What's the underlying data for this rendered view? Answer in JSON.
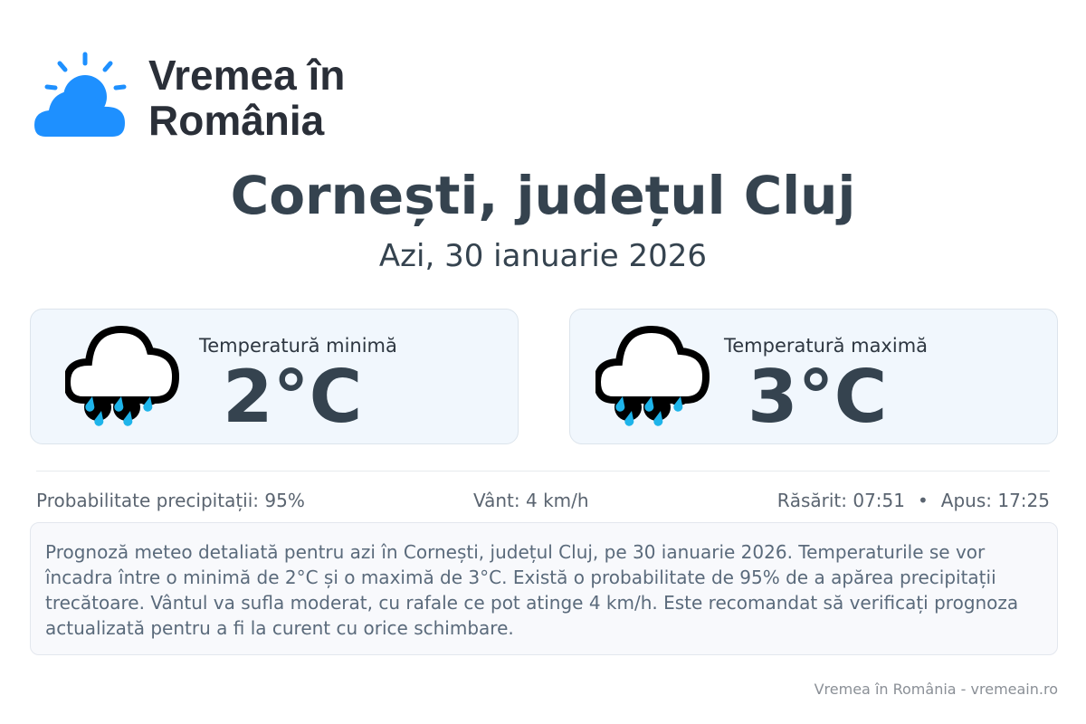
{
  "logo": {
    "text_line1": "Vremea în",
    "text_line2": "România",
    "icon": "sun-cloud-icon",
    "color": "#1e90ff"
  },
  "header": {
    "title": "Cornești, județul Cluj",
    "date": "Azi, 30 ianuarie 2026"
  },
  "cards": [
    {
      "label": "Temperatură minimă",
      "value": "2°C",
      "icon": "rain-cloud-icon"
    },
    {
      "label": "Temperatură maximă",
      "value": "3°C",
      "icon": "rain-cloud-icon"
    }
  ],
  "stats": {
    "precipitation": "Probabilitate precipitații: 95%",
    "wind": "Vânt: 4 km/h",
    "sunrise": "Răsărit: 07:51",
    "separator": "•",
    "sunset": "Apus: 17:25"
  },
  "description": "Prognoză meteo detaliată pentru azi în Cornești, județul Cluj, pe 30 ianuarie 2026. Temperaturile se vor încadra între o minimă de 2°C și o maximă de 3°C. Există o probabilitate de 95% de a apărea precipitații trecătoare. Vântul va sufla moderat, cu rafale ce pot atinge 4 km/h. Este recomandat să verificați prognoza actualizată pentru a fi la curent cu orice schimbare.",
  "footer": "Vremea în România - vremeain.ro"
}
